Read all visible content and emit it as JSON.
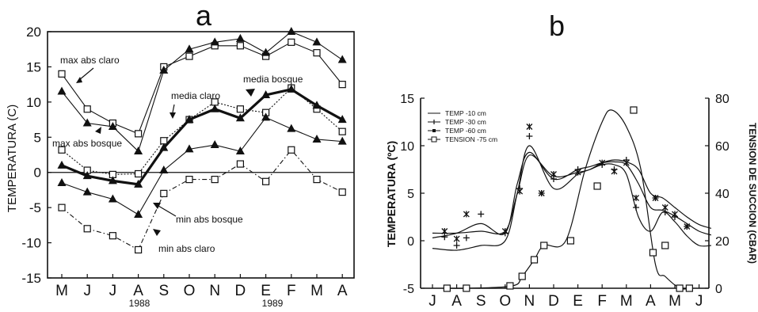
{
  "chart_data": [
    {
      "type": "line",
      "panel_label": "a",
      "ylabel": "TEMPERATURA (C)",
      "ylim": [
        -15,
        20
      ],
      "yticks": [
        "20",
        "15",
        "10",
        "5",
        "0",
        "-5",
        "-10",
        "-15"
      ],
      "categories": [
        "M",
        "J",
        "J",
        "A",
        "S",
        "O",
        "N",
        "D",
        "E",
        "F",
        "M",
        "A"
      ],
      "year_labels": [
        "1988",
        "1989"
      ],
      "zero_line": true,
      "series": [
        {
          "name": "max abs claro",
          "marker": "square-open",
          "line": "solid",
          "values": [
            14,
            9,
            7,
            5.5,
            15,
            16.5,
            18,
            18,
            16.5,
            18.5,
            17,
            12.5
          ]
        },
        {
          "name": "max abs bosque",
          "marker": "triangle",
          "line": "solid",
          "values": [
            11.5,
            7,
            6.5,
            3,
            14.5,
            17.5,
            18.5,
            19,
            17,
            20,
            18.5,
            16
          ]
        },
        {
          "name": "media claro",
          "marker": "square-open",
          "line": "dotted",
          "values": [
            3.2,
            0.3,
            -0.3,
            -0.2,
            4.5,
            7.5,
            10,
            9,
            8.5,
            12,
            9,
            5.8
          ]
        },
        {
          "name": "media bosque",
          "marker": "triangle",
          "line": "bold",
          "values": [
            1,
            -0.5,
            -1.2,
            -1.7,
            3.5,
            7.5,
            9,
            7.7,
            11,
            11.8,
            9.5,
            7.5
          ]
        },
        {
          "name": "min abs bosque",
          "marker": "triangle",
          "line": "solid",
          "values": [
            -1.5,
            -2.8,
            -3.8,
            -6,
            0.3,
            3.3,
            3.9,
            3,
            7.8,
            6.2,
            4.7,
            4.4
          ]
        },
        {
          "name": "min abs claro",
          "marker": "square-open",
          "line": "dash-dot",
          "values": [
            -5,
            -8,
            -9,
            -11,
            -3,
            -1,
            -1,
            1.2,
            -1.3,
            3.2,
            -1,
            -2.8
          ]
        }
      ],
      "annotations": [
        "max abs claro",
        "max abs bosque",
        "media claro",
        "media bosque",
        "min abs bosque",
        "min abs claro"
      ]
    },
    {
      "type": "line",
      "panel_label": "b",
      "ylabel": "TEMPERATURA (ºC)",
      "y2label": "TENSION DE SUCCION (CBAR)",
      "ylim": [
        -5,
        15
      ],
      "y2lim": [
        0,
        80
      ],
      "yticks": [
        "15",
        "10",
        "5",
        "0",
        "-5"
      ],
      "y2ticks": [
        "80",
        "60",
        "40",
        "20",
        "0"
      ],
      "categories": [
        "J",
        "A",
        "S",
        "O",
        "N",
        "D",
        "E",
        "F",
        "M",
        "A",
        "M",
        "J"
      ],
      "legend": [
        "TEMP -10 cm",
        "TEMP -30 cm",
        "TEMP -60 cm",
        "TENSION -75 cm"
      ],
      "series": [
        {
          "name": "TEMP -10 cm",
          "axis": "left",
          "x": [
            0,
            1,
            2,
            3,
            3.5,
            4,
            5,
            6,
            6.5,
            7,
            7.5,
            8,
            8.5,
            9,
            9.5,
            10,
            10.5,
            11,
            11.5
          ],
          "values": [
            -0.8,
            -1,
            -0.5,
            0,
            5,
            10,
            5.5,
            7,
            7.5,
            8,
            8,
            7,
            2.5,
            1,
            3,
            2,
            0.5,
            -0.5,
            -0.5
          ]
        },
        {
          "name": "TEMP -30 cm",
          "axis": "left",
          "x": [
            0,
            1,
            2,
            3,
            3.5,
            4,
            5,
            6,
            6.5,
            7,
            7.5,
            8,
            8.5,
            9,
            9.5,
            10,
            10.5,
            11,
            11.5
          ],
          "values": [
            0.3,
            0.8,
            1.8,
            0.8,
            6,
            9.3,
            6.5,
            7.5,
            7.8,
            8.2,
            8.3,
            8,
            6,
            3.5,
            3.2,
            2.6,
            1.8,
            1,
            0.6
          ]
        },
        {
          "name": "TEMP -60 cm",
          "axis": "left",
          "x": [
            0,
            1,
            2,
            3,
            3.5,
            4,
            5,
            6,
            6.5,
            7,
            7.5,
            8,
            8.5,
            9,
            9.5,
            10,
            10.5,
            11,
            11.5
          ],
          "values": [
            0.8,
            0.8,
            1,
            1,
            5,
            9,
            6.8,
            7.2,
            7.5,
            8.2,
            8.5,
            8.3,
            7.5,
            5,
            4.5,
            3.5,
            2.5,
            1.7,
            1.3
          ]
        },
        {
          "name": "TENSION -75 cm",
          "axis": "right",
          "x": [
            0.6,
            1.4,
            3.3,
            3.7,
            4.2,
            4.6,
            5.5,
            6.3,
            7,
            7.4,
            8,
            8.6,
            9.2,
            9.6,
            10.2,
            10.6
          ],
          "values": [
            0,
            0,
            1,
            5,
            12,
            18,
            20,
            50,
            70,
            75,
            68,
            50,
            10,
            5,
            0,
            0
          ]
        }
      ],
      "markers": [
        {
          "series": "TENSION -75 cm",
          "axis": "right",
          "x": [
            0.6,
            1.4,
            3.2,
            3.7,
            4.2,
            4.6,
            5.7,
            6.8,
            8.3,
            9.1,
            9.6,
            10.2,
            10.6
          ],
          "values": [
            0,
            0,
            1,
            5,
            12,
            18,
            20,
            43,
            75,
            15,
            18,
            0,
            0
          ]
        },
        {
          "series": "TEMP -30 cm",
          "axis": "left",
          "x": [
            0.5,
            1,
            1.4,
            2,
            3,
            3.6,
            4,
            4.5,
            5,
            6,
            7,
            7.5,
            8,
            8.4,
            9.2,
            9.6,
            10,
            10.5
          ],
          "values": [
            0.4,
            -0.5,
            0.3,
            2.8,
            0.8,
            5.5,
            11,
            5,
            6.5,
            7.5,
            8,
            7.5,
            8.5,
            3.5,
            4.5,
            3,
            2.5,
            1.5
          ]
        },
        {
          "series": "TEMP -60 cm",
          "axis": "left",
          "x": [
            0.5,
            1,
            1.4,
            3,
            3.6,
            4,
            4.5,
            5,
            6,
            7,
            7.5,
            8,
            8.4,
            9.2,
            9.6,
            10,
            10.5
          ],
          "values": [
            1,
            0.2,
            2.8,
            1,
            5.2,
            12,
            5,
            7,
            7.2,
            8.2,
            7.3,
            8.2,
            4.5,
            4.5,
            3.5,
            2.8,
            1.5
          ]
        }
      ]
    }
  ]
}
